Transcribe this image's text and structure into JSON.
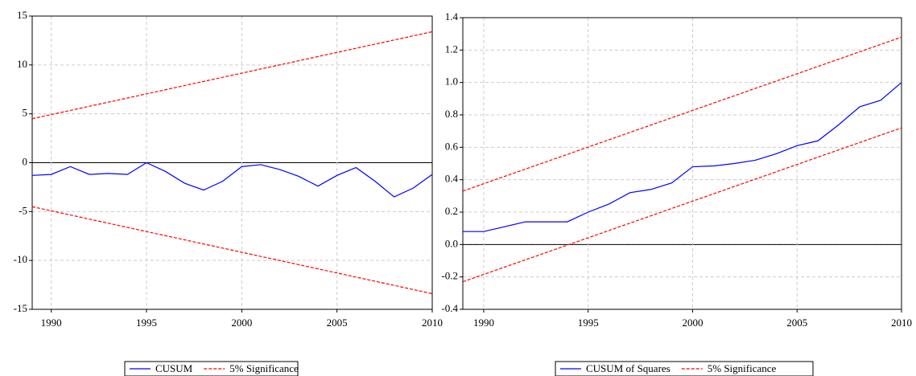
{
  "chart_data": [
    {
      "type": "line",
      "xlim": [
        1989,
        2010
      ],
      "xticks": [
        1990,
        1995,
        2000,
        2005,
        2010
      ],
      "ylim": [
        -15,
        15
      ],
      "yticks": [
        15,
        10,
        5,
        0,
        -5,
        -10,
        -15
      ],
      "grid": true,
      "x": [
        1989,
        1990,
        1991,
        1992,
        1993,
        1994,
        1995,
        1996,
        1997,
        1998,
        1999,
        2000,
        2001,
        2002,
        2003,
        2004,
        2005,
        2006,
        2007,
        2008,
        2009,
        2010
      ],
      "series": [
        {
          "name": "CUSUM",
          "color": "#0000ff",
          "values": [
            -1.3,
            -1.2,
            -0.4,
            -1.2,
            -1.1,
            -1.2,
            0.0,
            -0.9,
            -2.1,
            -2.8,
            -1.9,
            -0.4,
            -0.2,
            -0.7,
            -1.4,
            -2.4,
            -1.3,
            -0.5,
            -1.9,
            -3.5,
            -2.6,
            -1.2
          ]
        },
        {
          "name": "5% Significance",
          "color": "#ff0000",
          "dashed": true,
          "x": [
            1989,
            2010
          ],
          "upper": [
            4.5,
            13.4
          ],
          "lower": [
            -4.5,
            -13.4
          ]
        }
      ]
    },
    {
      "type": "line",
      "xlim": [
        1989,
        2010
      ],
      "xticks": [
        1990,
        1995,
        2000,
        2005,
        2010
      ],
      "ylim": [
        -0.4,
        1.4
      ],
      "yticks": [
        1.4,
        1.2,
        {
          "value": 1,
          "label": "1.0"
        },
        0.8,
        0.6,
        0.4,
        0.2,
        {
          "value": 0,
          "label": "0.0"
        },
        -0.2,
        -0.4
      ],
      "grid": true,
      "x": [
        1989,
        1990,
        1991,
        1992,
        1993,
        1994,
        1995,
        1996,
        1997,
        1998,
        1999,
        2000,
        2001,
        2002,
        2003,
        2004,
        2005,
        2006,
        2007,
        2008,
        2009,
        2010
      ],
      "series": [
        {
          "name": "CUSUM of Squares",
          "color": "#0000ff",
          "values": [
            0.08,
            0.08,
            0.11,
            0.14,
            0.14,
            0.14,
            0.2,
            0.25,
            0.32,
            0.34,
            0.38,
            0.48,
            0.485,
            0.5,
            0.52,
            0.56,
            0.61,
            0.64,
            0.74,
            0.85,
            0.89,
            1.0
          ]
        },
        {
          "name": "5% Significance",
          "color": "#ff0000",
          "dashed": true,
          "x": [
            1989,
            2010
          ],
          "upper": [
            0.33,
            1.28
          ],
          "lower": [
            -0.23,
            0.72
          ]
        }
      ]
    }
  ]
}
